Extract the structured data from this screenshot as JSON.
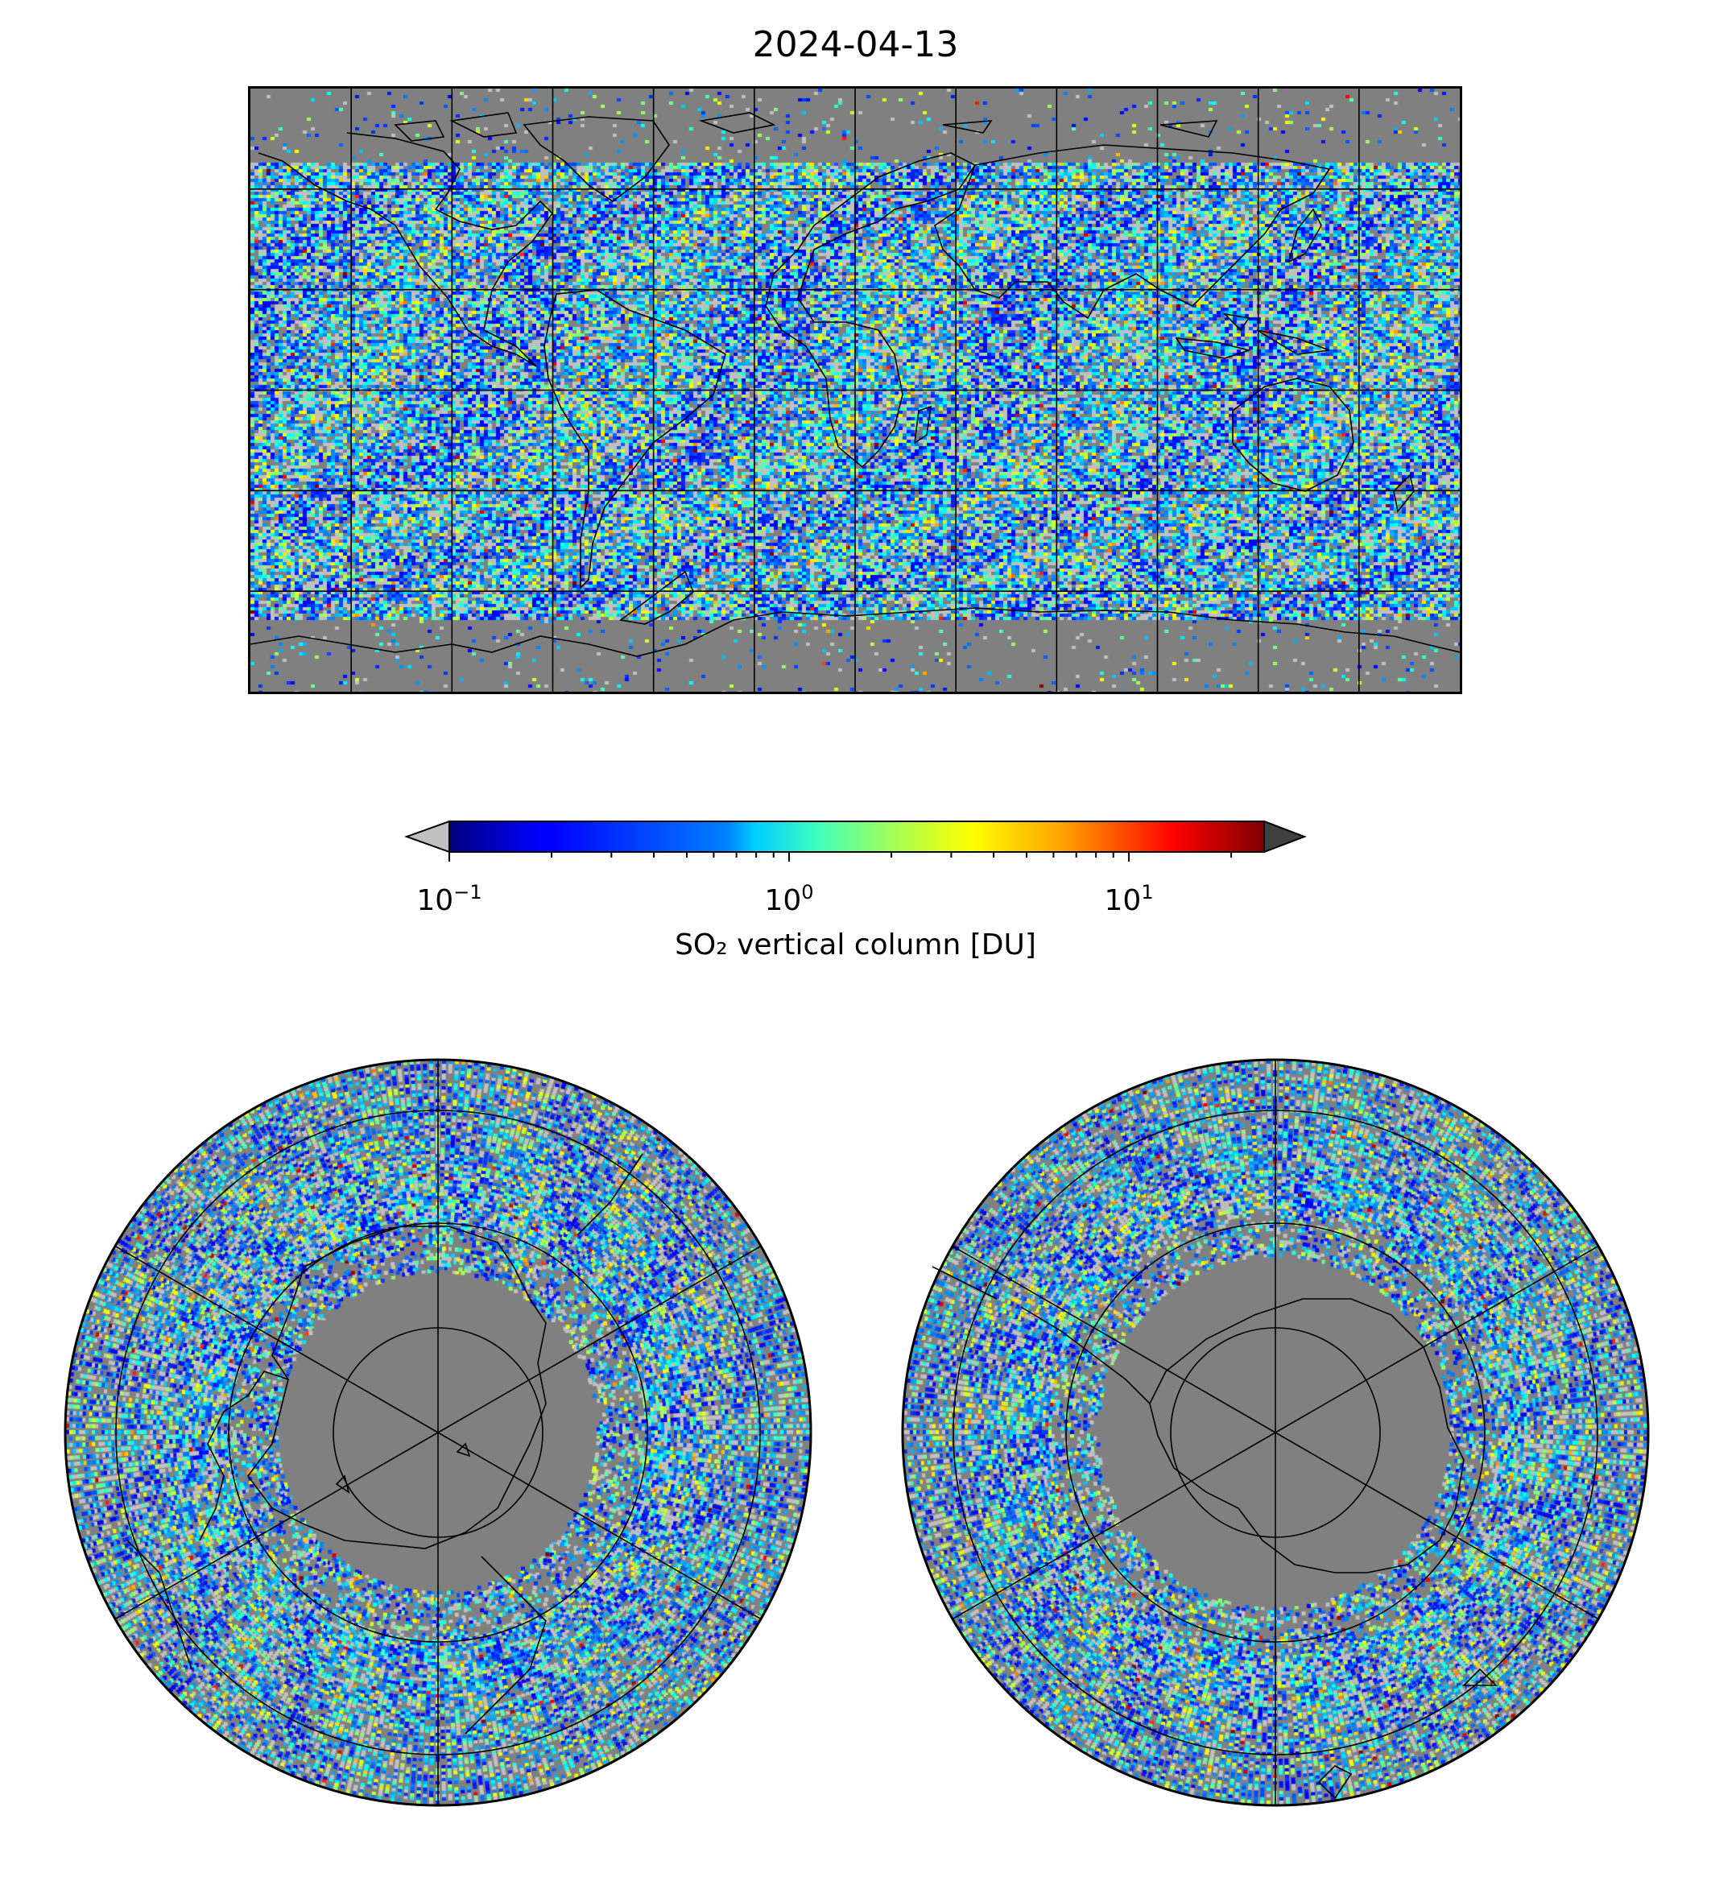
{
  "figure": {
    "title": "2024-04-13"
  },
  "colorbar": {
    "label": "SO₂ vertical column [DU]",
    "scale": "log",
    "range": [
      0.1,
      25
    ],
    "colormap": "jet",
    "extend": "both",
    "under_color": "#c0c0c0",
    "over_color": "#404040",
    "ticks": [
      {
        "base": "10",
        "exp": "−1",
        "value": 0.1
      },
      {
        "base": "10",
        "exp": "0",
        "value": 1
      },
      {
        "base": "10",
        "exp": "1",
        "value": 10
      }
    ]
  },
  "maps": {
    "global": {
      "projection": "plate-carree",
      "background": "#808080",
      "coastline": "#000000",
      "gridlines": "#000000"
    },
    "north_polar": {
      "projection": "north-polar-stereographic",
      "background": "#808080"
    },
    "south_polar": {
      "projection": "south-polar-stereographic",
      "background": "#808080"
    }
  }
}
